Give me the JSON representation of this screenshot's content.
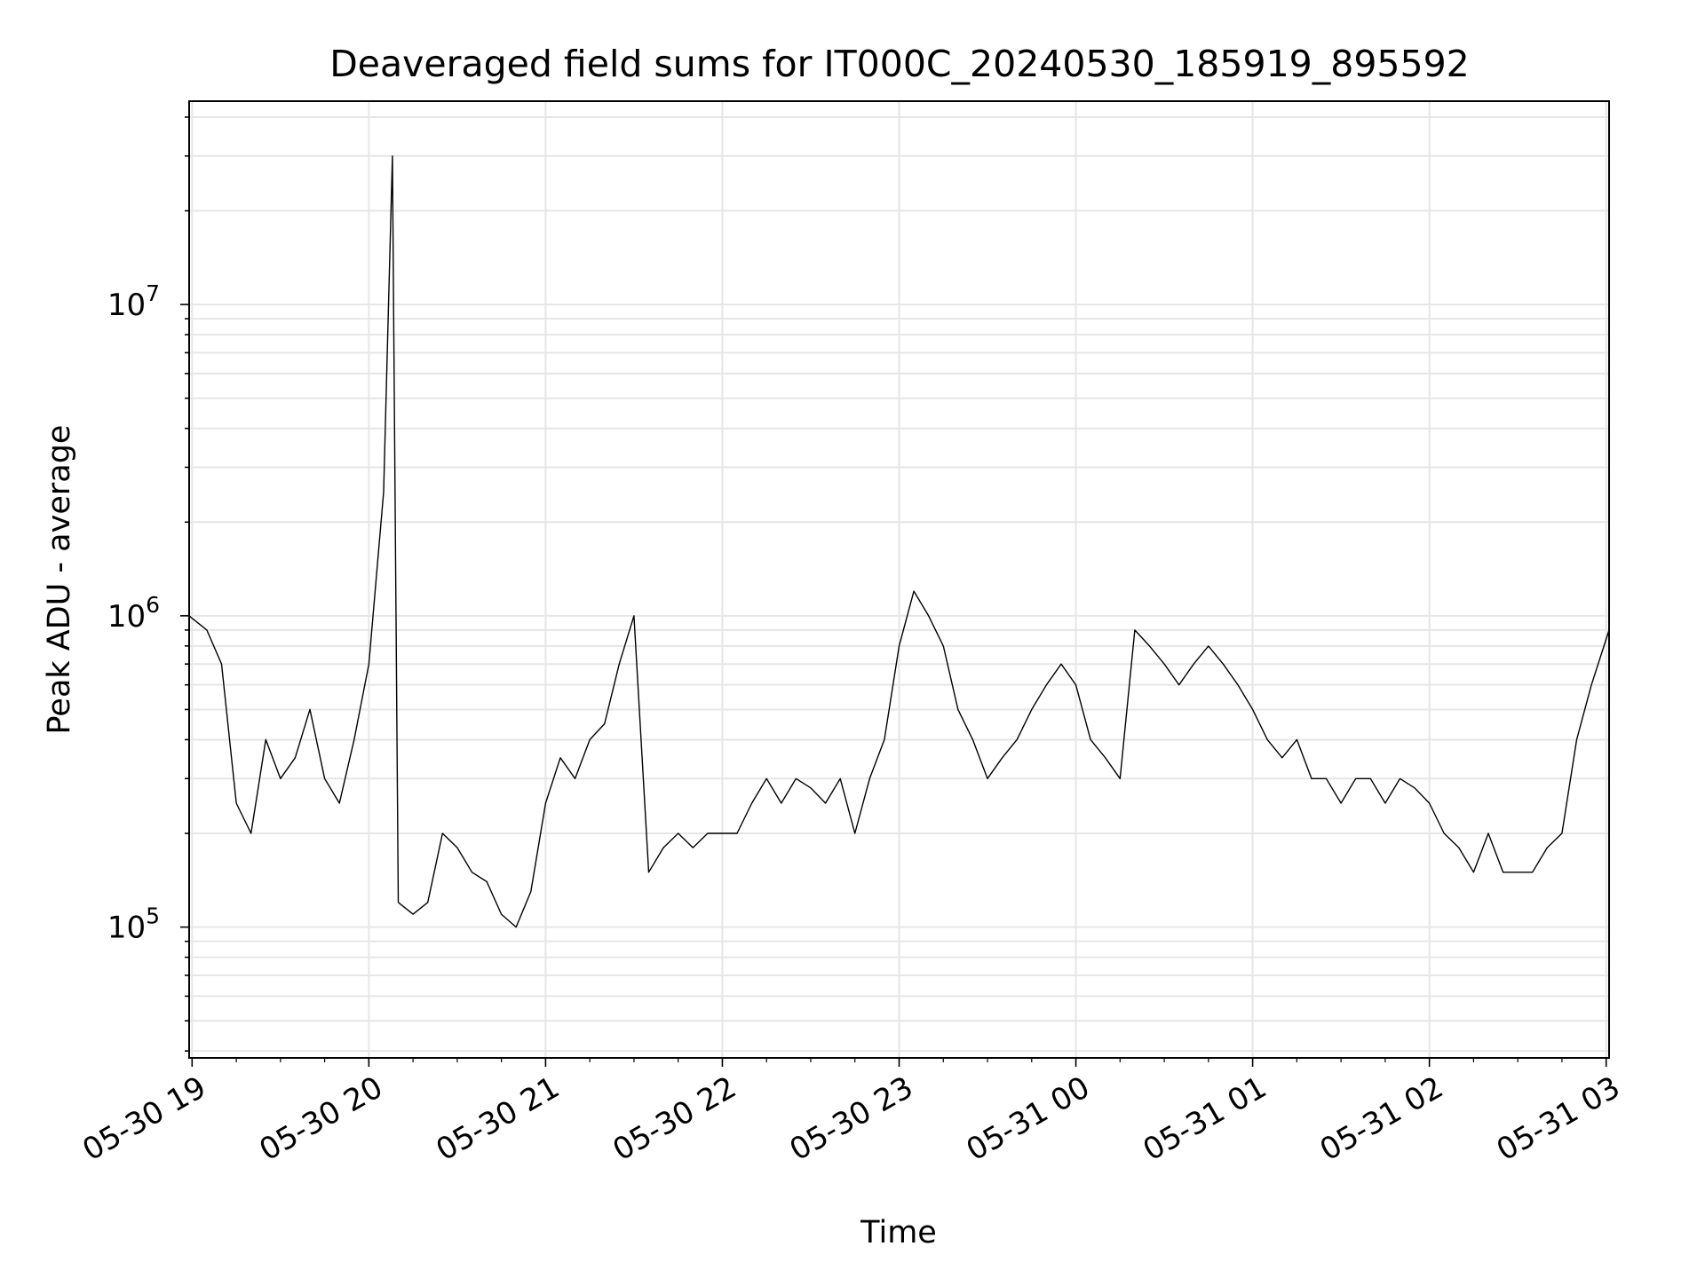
{
  "chart_data": {
    "type": "line",
    "title": "Deaveraged field sums for IT000C_20240530_185919_895592",
    "xlabel": "Time",
    "ylabel": "Peak ADU - average",
    "y_scale": "log",
    "ylim": [
      38000,
      45000000
    ],
    "xlim": [
      "2024-05-30 18:59",
      "2024-05-31 03:01"
    ],
    "grid": true,
    "line_color": "#000000",
    "grid_color": "#e6e6e6",
    "x_ticks": [
      "05-30 19",
      "05-30 20",
      "05-30 21",
      "05-30 22",
      "05-30 23",
      "05-31 00",
      "05-31 01",
      "05-31 02",
      "05-31 03"
    ],
    "y_ticks": [
      {
        "base": "10",
        "exp": "5",
        "value": 100000
      },
      {
        "base": "10",
        "exp": "6",
        "value": 1000000
      },
      {
        "base": "10",
        "exp": "7",
        "value": 10000000
      }
    ],
    "series": [
      {
        "x": [
          "2024-05-30 18:59",
          "2024-05-30 19:05",
          "2024-05-30 19:10",
          "2024-05-30 19:15",
          "2024-05-30 19:20",
          "2024-05-30 19:25",
          "2024-05-30 19:30",
          "2024-05-30 19:35",
          "2024-05-30 19:40",
          "2024-05-30 19:45",
          "2024-05-30 19:50",
          "2024-05-30 19:55",
          "2024-05-30 20:00",
          "2024-05-30 20:05",
          "2024-05-30 20:08",
          "2024-05-30 20:10",
          "2024-05-30 20:15",
          "2024-05-30 20:20",
          "2024-05-30 20:25",
          "2024-05-30 20:30",
          "2024-05-30 20:35",
          "2024-05-30 20:40",
          "2024-05-30 20:45",
          "2024-05-30 20:50",
          "2024-05-30 20:55",
          "2024-05-30 21:00",
          "2024-05-30 21:05",
          "2024-05-30 21:10",
          "2024-05-30 21:15",
          "2024-05-30 21:20",
          "2024-05-30 21:25",
          "2024-05-30 21:30",
          "2024-05-30 21:35",
          "2024-05-30 21:40",
          "2024-05-30 21:45",
          "2024-05-30 21:50",
          "2024-05-30 21:55",
          "2024-05-30 22:00",
          "2024-05-30 22:05",
          "2024-05-30 22:10",
          "2024-05-30 22:15",
          "2024-05-30 22:20",
          "2024-05-30 22:25",
          "2024-05-30 22:30",
          "2024-05-30 22:35",
          "2024-05-30 22:40",
          "2024-05-30 22:45",
          "2024-05-30 22:50",
          "2024-05-30 22:55",
          "2024-05-30 23:00",
          "2024-05-30 23:05",
          "2024-05-30 23:10",
          "2024-05-30 23:15",
          "2024-05-30 23:20",
          "2024-05-30 23:25",
          "2024-05-30 23:30",
          "2024-05-30 23:35",
          "2024-05-30 23:40",
          "2024-05-30 23:45",
          "2024-05-30 23:50",
          "2024-05-30 23:55",
          "2024-05-31 00:00",
          "2024-05-31 00:05",
          "2024-05-31 00:10",
          "2024-05-31 00:15",
          "2024-05-31 00:20",
          "2024-05-31 00:25",
          "2024-05-31 00:30",
          "2024-05-31 00:35",
          "2024-05-31 00:40",
          "2024-05-31 00:45",
          "2024-05-31 00:50",
          "2024-05-31 00:55",
          "2024-05-31 01:00",
          "2024-05-31 01:05",
          "2024-05-31 01:10",
          "2024-05-31 01:15",
          "2024-05-31 01:20",
          "2024-05-31 01:25",
          "2024-05-31 01:30",
          "2024-05-31 01:35",
          "2024-05-31 01:40",
          "2024-05-31 01:45",
          "2024-05-31 01:50",
          "2024-05-31 01:55",
          "2024-05-31 02:00",
          "2024-05-31 02:05",
          "2024-05-31 02:10",
          "2024-05-31 02:15",
          "2024-05-31 02:20",
          "2024-05-31 02:25",
          "2024-05-31 02:30",
          "2024-05-31 02:35",
          "2024-05-31 02:40",
          "2024-05-31 02:45",
          "2024-05-31 02:50",
          "2024-05-31 02:55",
          "2024-05-31 03:01"
        ],
        "y": [
          1000000,
          900000,
          700000,
          250000,
          200000,
          400000,
          300000,
          350000,
          500000,
          300000,
          250000,
          400000,
          700000,
          2500000,
          30000000,
          120000,
          110000,
          120000,
          200000,
          180000,
          150000,
          140000,
          110000,
          100000,
          130000,
          250000,
          350000,
          300000,
          400000,
          450000,
          700000,
          1000000,
          150000,
          180000,
          200000,
          180000,
          200000,
          200000,
          200000,
          250000,
          300000,
          250000,
          300000,
          280000,
          250000,
          300000,
          200000,
          300000,
          400000,
          800000,
          1200000,
          1000000,
          800000,
          500000,
          400000,
          300000,
          350000,
          400000,
          500000,
          600000,
          700000,
          600000,
          400000,
          350000,
          300000,
          900000,
          800000,
          700000,
          600000,
          700000,
          800000,
          700000,
          600000,
          500000,
          400000,
          350000,
          400000,
          300000,
          300000,
          250000,
          300000,
          300000,
          250000,
          300000,
          280000,
          250000,
          200000,
          180000,
          150000,
          200000,
          150000,
          150000,
          150000,
          180000,
          200000,
          400000,
          600000,
          900000
        ]
      }
    ]
  }
}
